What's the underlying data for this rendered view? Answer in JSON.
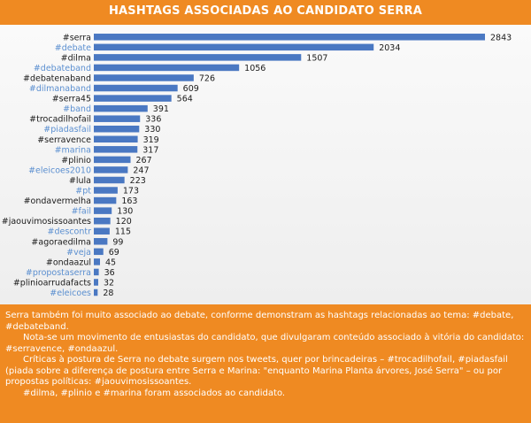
{
  "header": {
    "title": "HASHTAGS ASSOCIADAS AO CANDIDATO SERRA"
  },
  "colors": {
    "header_bg": "#ef8a22",
    "bar": "#4a78c2",
    "label_dark": "#1a1a1a",
    "label_blue": "#5b8fd0"
  },
  "chart_data": {
    "type": "bar",
    "orientation": "horizontal",
    "title": "HASHTAGS ASSOCIADAS AO CANDIDATO SERRA",
    "categories": [
      "#serra",
      "#debate",
      "#dilma",
      "#debateband",
      "#debatenaband",
      "#dilmanaband",
      "#serra45",
      "#band",
      "#trocadilhofail",
      "#piadasfail",
      "#serravence",
      "#marina",
      "#plinio",
      "#eleicoes2010",
      "#lula",
      "#pt",
      "#ondavermelha",
      "#fail",
      "#jaouvimosissoantes",
      "#descontr",
      "#agoraedilma",
      "#veja",
      "#ondaazul",
      "#propostaserra",
      "#plinioarrudafacts",
      "#eleicoes"
    ],
    "values": [
      2843,
      2034,
      1507,
      1056,
      726,
      609,
      564,
      391,
      336,
      330,
      319,
      317,
      267,
      247,
      223,
      173,
      163,
      130,
      120,
      115,
      99,
      69,
      45,
      36,
      32,
      28
    ],
    "label_colors": [
      "dark",
      "blue",
      "dark",
      "blue",
      "dark",
      "blue",
      "dark",
      "blue",
      "dark",
      "blue",
      "dark",
      "blue",
      "dark",
      "blue",
      "dark",
      "blue",
      "dark",
      "blue",
      "dark",
      "blue",
      "dark",
      "blue",
      "dark",
      "blue",
      "dark",
      "blue"
    ],
    "xlim": [
      0,
      2843
    ],
    "grid": false,
    "value_labels": true
  },
  "footer": {
    "paragraphs": [
      "Serra também foi muito associado ao debate, conforme demonstram as hashtags relacionadas ao tema: #debate, #debateband.",
      "Nota-se um movimento de entusiastas do candidato, que divulgaram conteúdo associado à vitória do candidato: #serravence, #ondaazul.",
      "Críticas à postura de Serra no debate surgem nos tweets, quer por brincadeiras – #trocadilhofail, #piadasfail (piada sobre a diferença de postura entre Serra e Marina: \"enquanto Marina Planta árvores, José Serra\" – ou por propostas políticas: #jaouvimosissoantes.",
      "#dilma, #plinio e #marina foram associados ao candidato."
    ]
  }
}
